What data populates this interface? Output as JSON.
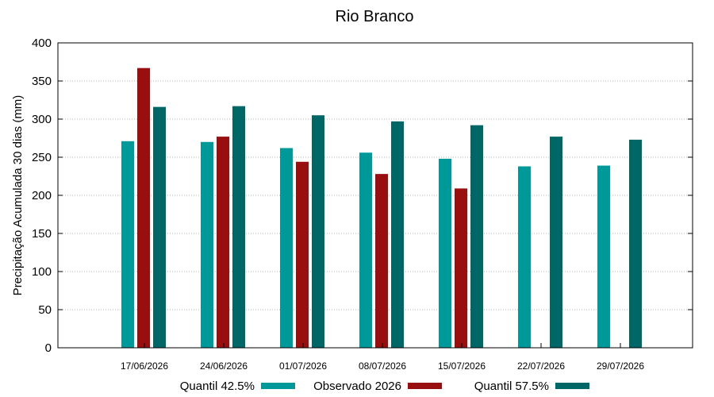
{
  "chart_data": {
    "type": "bar",
    "title": "Rio Branco",
    "xlabel": "",
    "ylabel": "Precipitação Acumulada 30 dias (mm)",
    "ylim": [
      0,
      400
    ],
    "yticks": [
      0,
      50,
      100,
      150,
      200,
      250,
      300,
      350,
      400
    ],
    "grid": true,
    "legend_position": "bottom",
    "categories": [
      "17/06/2026",
      "24/06/2026",
      "01/07/2026",
      "08/07/2026",
      "15/07/2026",
      "22/07/2026",
      "29/07/2026"
    ],
    "series": [
      {
        "name": "Quantil 42.5%",
        "color": "#009999",
        "values": [
          271,
          270,
          262,
          256,
          248,
          238,
          239
        ]
      },
      {
        "name": "Observado 2026",
        "color": "#990f0f",
        "values": [
          367,
          277,
          244,
          228,
          209,
          null,
          null
        ]
      },
      {
        "name": "Quantil 57.5%",
        "color": "#006666",
        "values": [
          316,
          317,
          305,
          297,
          292,
          277,
          273
        ]
      }
    ]
  }
}
